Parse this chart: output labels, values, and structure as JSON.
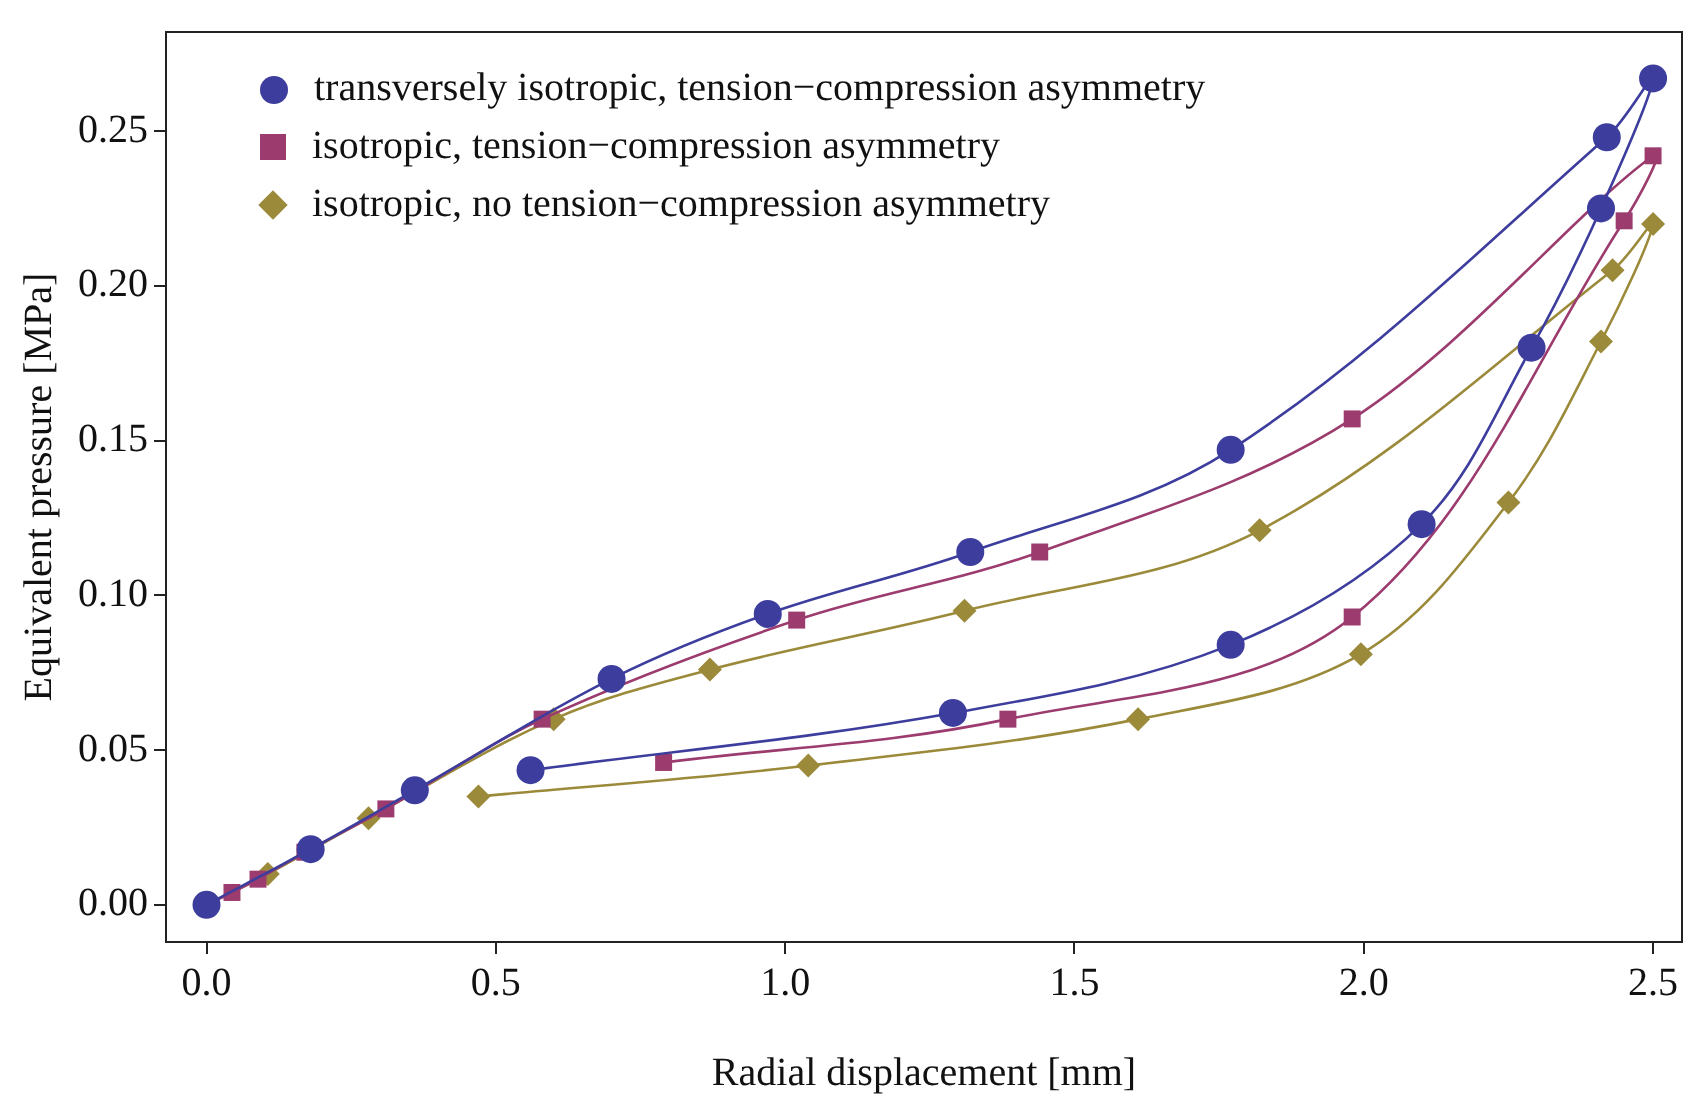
{
  "chart_data": {
    "type": "line",
    "xlabel": "Radial displacement [mm]",
    "ylabel": "Equivalent pressure [MPa]",
    "xlim": [
      -0.07,
      2.55
    ],
    "ylim": [
      -0.012,
      0.282
    ],
    "xticks": [
      {
        "value": 0,
        "label": "0.0"
      },
      0.5,
      {
        "value": 1,
        "label": "1.0"
      },
      1.5,
      {
        "value": 2,
        "label": "2.0"
      },
      2.5
    ],
    "yticks": [
      {
        "value": 0,
        "label": "0.00"
      },
      0.05,
      {
        "value": 0.1,
        "label": "0.10"
      },
      0.15,
      {
        "value": 0.2,
        "label": "0.20"
      },
      0.25
    ],
    "grid": false,
    "legend": "top left",
    "line_style": "solid",
    "series": [
      {
        "name": "transversely isotropic, tension−compression asymmetry",
        "color": "#3d3d9e",
        "marker": "circle",
        "x": [
          0,
          0.18,
          0.36,
          0.7,
          0.97,
          1.32,
          1.77,
          2.42,
          2.5,
          2.41,
          2.29,
          2.1,
          1.77,
          1.29,
          0.56
        ],
        "values": [
          0,
          0.018,
          0.037,
          0.073,
          0.094,
          0.114,
          0.147,
          0.248,
          0.267,
          0.225,
          0.18,
          0.123,
          0.084,
          0.062,
          0.0435
        ]
      },
      {
        "name": "isotropic, tension−compression asymmetry",
        "color": "#9b3b6e",
        "marker": "square",
        "x": [
          0,
          0.044,
          0.089,
          0.17,
          0.31,
          0.58,
          1.02,
          1.44,
          1.98,
          2.5,
          2.45,
          1.98,
          1.385,
          0.79
        ],
        "values": [
          0,
          0.004,
          0.0083,
          0.017,
          0.031,
          0.06,
          0.092,
          0.114,
          0.157,
          0.242,
          0.221,
          0.093,
          0.06,
          0.046
        ]
      },
      {
        "name": "isotropic, no tension−compression asymmetry",
        "color": "#9b8a3a",
        "marker": "diamond",
        "x": [
          0,
          0.106,
          0.28,
          0.6,
          0.87,
          1.31,
          1.82,
          2.43,
          2.5,
          2.41,
          2.25,
          1.995,
          1.61,
          1.04,
          0.47
        ],
        "values": [
          0,
          0.01,
          0.028,
          0.06,
          0.076,
          0.095,
          0.121,
          0.205,
          0.22,
          0.182,
          0.13,
          0.081,
          0.06,
          0.045,
          0.035
        ]
      }
    ]
  }
}
